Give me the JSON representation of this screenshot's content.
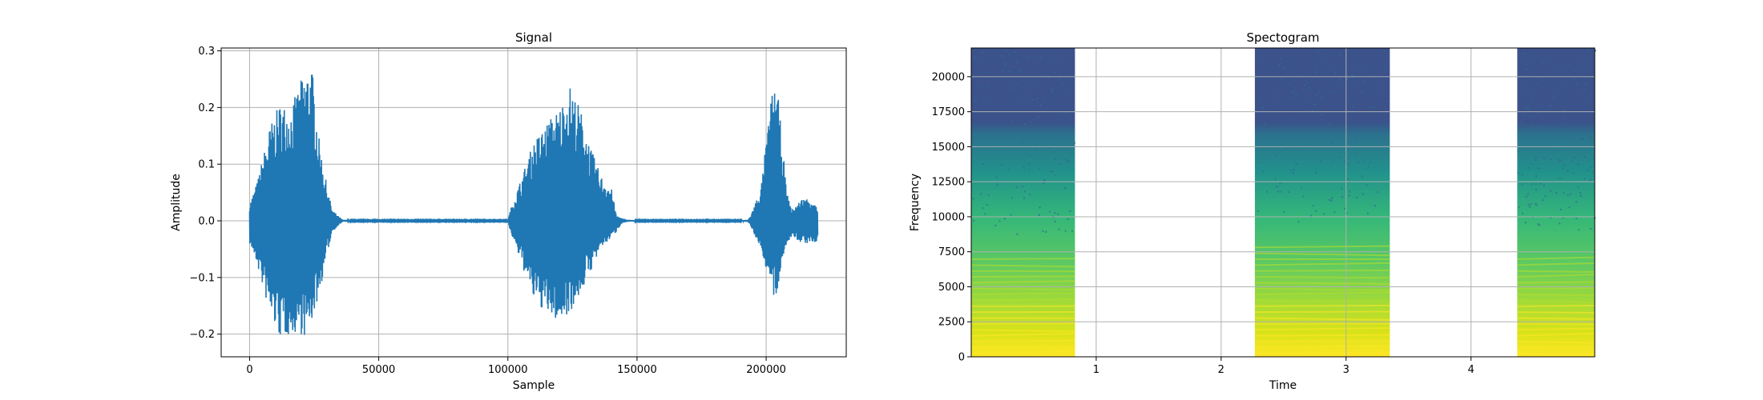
{
  "chart_data": [
    {
      "type": "line",
      "title": "Signal",
      "xlabel": "Sample",
      "ylabel": "Amplitude",
      "xlim": [
        -11000,
        231000
      ],
      "ylim": [
        -0.24,
        0.305
      ],
      "xticks": [
        0,
        50000,
        100000,
        150000,
        200000
      ],
      "xtick_labels": [
        "0",
        "50000",
        "100000",
        "150000",
        "200000"
      ],
      "yticks": [
        -0.2,
        -0.1,
        0.0,
        0.1,
        0.2,
        0.3
      ],
      "ytick_labels": [
        "−0.2",
        "−0.1",
        "0.0",
        "0.1",
        "0.2",
        "0.3"
      ],
      "grid": true,
      "color": "#1f77b4",
      "series": [
        {
          "envelope_x": [
            0,
            3000,
            8000,
            12000,
            16000,
            20000,
            22000,
            24000,
            27000,
            30000,
            32000,
            34000,
            36000,
            40000,
            60000,
            80000,
            100000,
            101000,
            104000,
            110000,
            116000,
            120000,
            124000,
            126000,
            128000,
            132000,
            136000,
            140000,
            142000,
            144000,
            146000,
            150000,
            170000,
            190000,
            193000,
            194000,
            198000,
            202000,
            204000,
            206000,
            208000,
            210000,
            214000,
            218000,
            220000
          ],
          "envelope_upper": [
            0.03,
            0.07,
            0.17,
            0.21,
            0.2,
            0.25,
            0.27,
            0.28,
            0.14,
            0.06,
            0.02,
            0.01,
            0.002,
            0.001,
            0.001,
            0.001,
            0.001,
            0.02,
            0.06,
            0.14,
            0.18,
            0.2,
            0.24,
            0.22,
            0.2,
            0.13,
            0.08,
            0.06,
            0.01,
            0.005,
            0.002,
            0.001,
            0.001,
            0.001,
            0.002,
            0.01,
            0.06,
            0.22,
            0.25,
            0.15,
            0.05,
            0.02,
            0.04,
            0.04,
            0.02
          ],
          "envelope_lower": [
            -0.04,
            -0.08,
            -0.17,
            -0.21,
            -0.2,
            -0.2,
            -0.21,
            -0.18,
            -0.13,
            -0.06,
            -0.02,
            -0.01,
            -0.002,
            -0.001,
            -0.001,
            -0.001,
            -0.001,
            -0.02,
            -0.06,
            -0.14,
            -0.17,
            -0.18,
            -0.16,
            -0.15,
            -0.13,
            -0.09,
            -0.05,
            -0.03,
            -0.02,
            -0.005,
            -0.002,
            -0.001,
            -0.001,
            -0.001,
            -0.002,
            -0.01,
            -0.05,
            -0.12,
            -0.16,
            -0.07,
            -0.04,
            -0.03,
            -0.04,
            -0.04,
            -0.04
          ]
        }
      ]
    },
    {
      "type": "heatmap",
      "title": "Spectogram",
      "xlabel": "Time",
      "ylabel": "Frequency",
      "xlim": [
        0.0,
        4.99
      ],
      "ylim": [
        0,
        22050
      ],
      "xticks": [
        1,
        2,
        3,
        4
      ],
      "xtick_labels": [
        "1",
        "2",
        "3",
        "4"
      ],
      "yticks": [
        0,
        2500,
        5000,
        7500,
        10000,
        12500,
        15000,
        17500,
        20000
      ],
      "ytick_labels": [
        "0",
        "2500",
        "5000",
        "7500",
        "10000",
        "12500",
        "15000",
        "17500",
        "20000"
      ],
      "grid": true,
      "colormap": "viridis",
      "segments": [
        {
          "t_start": 0.0,
          "t_end": 0.83,
          "bright_band_top": 7000,
          "upper_edge": 16000
        },
        {
          "t_start": 2.27,
          "t_end": 3.35,
          "bright_band_top": 8000,
          "upper_edge": 17500
        },
        {
          "t_start": 4.37,
          "t_end": 4.99,
          "bright_band_top": 7000,
          "upper_edge": 16500
        }
      ],
      "silent_intervals": [
        [
          0.83,
          2.27
        ],
        [
          3.35,
          4.37
        ]
      ]
    }
  ]
}
